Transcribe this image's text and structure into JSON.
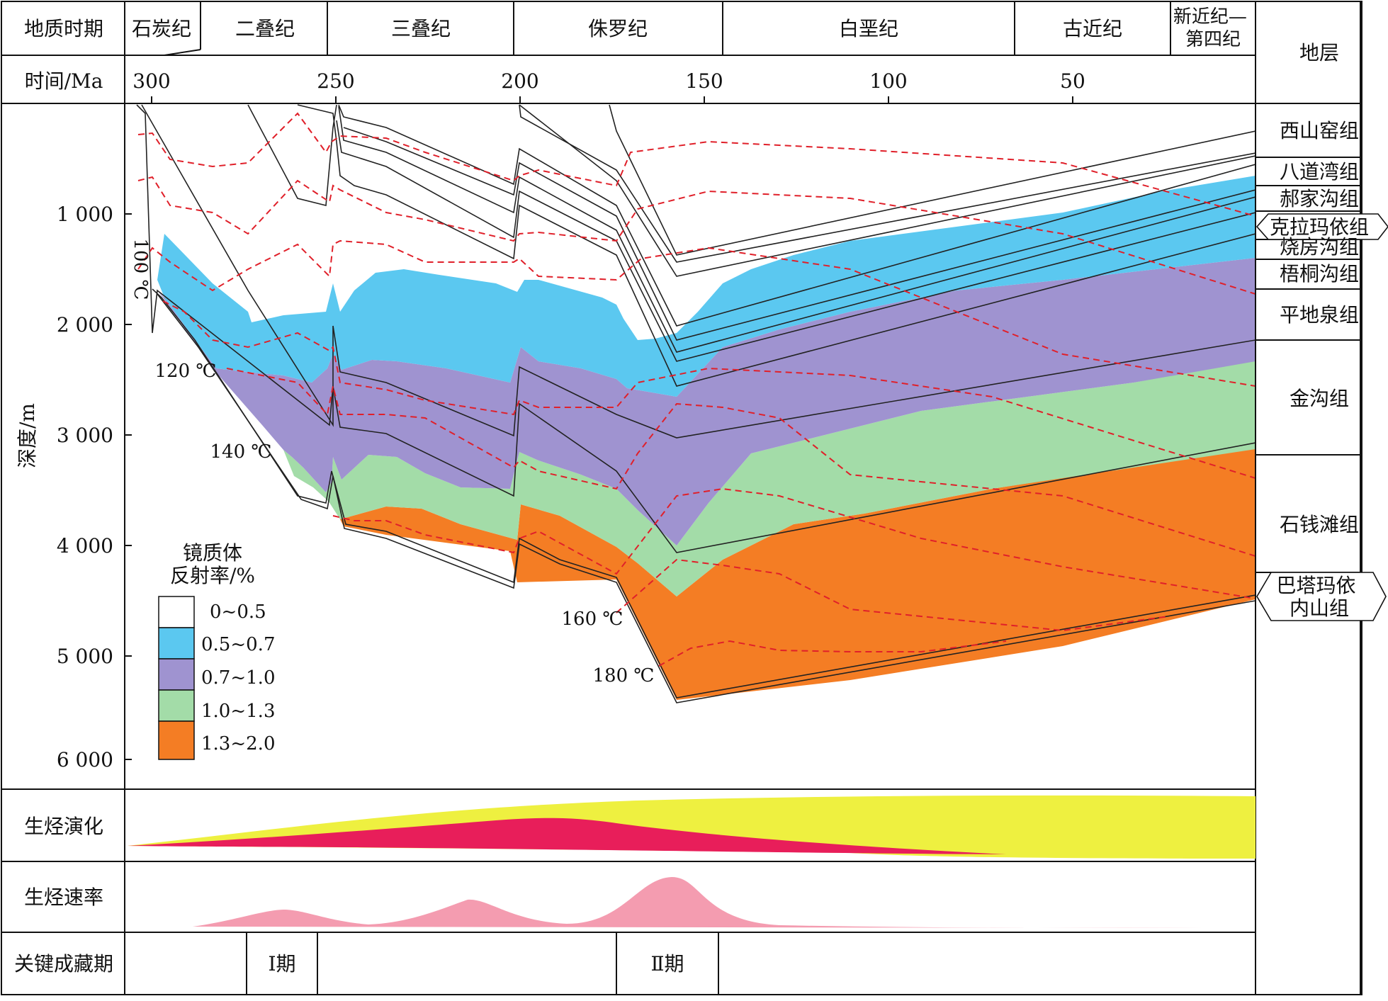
{
  "header": {
    "period_label": "地质时期",
    "time_label": "时间/Ma",
    "strata_header": "地层",
    "periods": [
      {
        "name": "石炭纪",
        "start": 300,
        "end": 290
      },
      {
        "name": "二叠纪",
        "start": 290,
        "end": 252
      },
      {
        "name": "三叠纪",
        "start": 252,
        "end": 201
      },
      {
        "name": "侏罗纪",
        "start": 201,
        "end": 145
      },
      {
        "name": "白垩纪",
        "start": 145,
        "end": 66
      },
      {
        "name": "古近纪",
        "start": 66,
        "end": 23
      },
      {
        "name": "新近纪—第四纪",
        "start": 23,
        "end": 0
      }
    ],
    "time_ticks": [
      "300",
      "250",
      "200",
      "150",
      "100",
      "50"
    ]
  },
  "depth_axis": {
    "label": "深度/m",
    "ticks": [
      "1 000",
      "2 000",
      "3 000",
      "4 000",
      "5 000",
      "6 000"
    ]
  },
  "isotherms": [
    "100 ℃",
    "120 ℃",
    "140 ℃",
    "160 ℃",
    "180 ℃"
  ],
  "legend": {
    "title_line1": "镜质体",
    "title_line2": "反射率/%",
    "items": [
      {
        "label": "0~0.5",
        "color": "#ffffff"
      },
      {
        "label": "0.5~0.7",
        "color": "#5bc8f0"
      },
      {
        "label": "0.7~1.0",
        "color": "#9f93d0"
      },
      {
        "label": "1.0~1.3",
        "color": "#a3dca8"
      },
      {
        "label": "1.3~2.0",
        "color": "#f47d24"
      }
    ]
  },
  "strata": [
    "西山窑组",
    "八道湾组",
    "郝家沟组",
    "克拉玛依组",
    "烧房沟组",
    "梧桐沟组",
    "平地泉组",
    "金沟组",
    "石钱滩组",
    "巴塔玛依内山组"
  ],
  "rows": {
    "evolution_label": "生烃演化",
    "rate_label": "生烃速率",
    "critical_label": "关键成藏期",
    "phase1": "Ⅰ期",
    "phase2": "Ⅱ期"
  },
  "colors": {
    "isotherm": "#e0202a",
    "evolution_yellow": "#eef040",
    "evolution_red": "#e81e5a",
    "rate_pink": "#f49cb0"
  }
}
